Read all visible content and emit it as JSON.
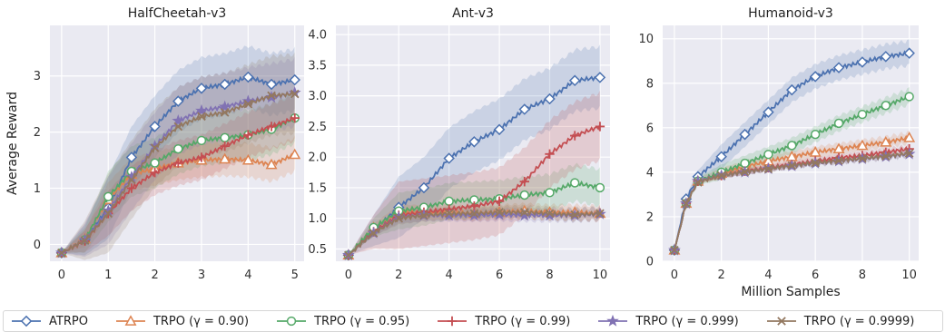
{
  "y_axis_label": "Average Reward",
  "x_axis_label": "Million Samples",
  "legend": [
    {
      "key": "atrpo",
      "label": "ATRPO",
      "color": "#4c72b0",
      "marker": "diamond"
    },
    {
      "key": "g090",
      "label": "TRPO (γ = 0.90)",
      "color": "#dd8452",
      "marker": "triangle"
    },
    {
      "key": "g095",
      "label": "TRPO (γ = 0.95)",
      "color": "#55a868",
      "marker": "circle"
    },
    {
      "key": "g099",
      "label": "TRPO (γ = 0.99)",
      "color": "#c44e52",
      "marker": "plus"
    },
    {
      "key": "g0999",
      "label": "TRPO (γ = 0.999)",
      "color": "#8172b3",
      "marker": "star"
    },
    {
      "key": "g09999",
      "label": "TRPO (γ = 0.9999)",
      "color": "#937860",
      "marker": "x"
    }
  ],
  "chart_data": [
    {
      "type": "line",
      "title": "HalfCheetah-v3",
      "xlabel": "",
      "ylabel": "Average Reward",
      "xlim": [
        -0.25,
        5.2
      ],
      "ylim": [
        -0.3,
        3.9
      ],
      "xticks": [
        0,
        1,
        2,
        3,
        4,
        5
      ],
      "yticks": [
        0,
        1,
        2,
        3
      ],
      "grid": true,
      "x": [
        0,
        0.5,
        1,
        1.5,
        2,
        2.5,
        3,
        3.5,
        4,
        4.5,
        5
      ],
      "series": [
        {
          "key": "atrpo",
          "values": [
            -0.15,
            0.08,
            0.65,
            1.55,
            2.1,
            2.55,
            2.78,
            2.85,
            2.98,
            2.85,
            2.93
          ],
          "band": 0.55
        },
        {
          "key": "g090",
          "values": [
            -0.15,
            0.1,
            0.8,
            1.25,
            1.35,
            1.45,
            1.5,
            1.52,
            1.5,
            1.42,
            1.6
          ],
          "band": 0.3
        },
        {
          "key": "g095",
          "values": [
            -0.15,
            0.08,
            0.85,
            1.3,
            1.45,
            1.7,
            1.85,
            1.9,
            1.95,
            2.05,
            2.25
          ],
          "band": 0.45
        },
        {
          "key": "g099",
          "values": [
            -0.15,
            0.06,
            0.55,
            1.0,
            1.28,
            1.45,
            1.55,
            1.75,
            1.95,
            2.1,
            2.25
          ],
          "band": 0.4
        },
        {
          "key": "g0999",
          "values": [
            -0.15,
            0.08,
            0.6,
            1.2,
            1.75,
            2.2,
            2.38,
            2.45,
            2.55,
            2.62,
            2.7
          ],
          "band": 0.6
        },
        {
          "key": "g09999",
          "values": [
            -0.15,
            0.07,
            0.55,
            1.15,
            1.72,
            2.1,
            2.28,
            2.35,
            2.5,
            2.65,
            2.68
          ],
          "band": 0.7
        }
      ]
    },
    {
      "type": "line",
      "title": "Ant-v3",
      "xlabel": "",
      "ylabel": "",
      "xlim": [
        -0.5,
        10.4
      ],
      "ylim": [
        0.3,
        4.15
      ],
      "xticks": [
        0,
        2,
        4,
        6,
        8,
        10
      ],
      "yticks": [
        0.5,
        1.0,
        1.5,
        2.0,
        2.5,
        3.0,
        3.5,
        4.0
      ],
      "ytick_labels": [
        "0.5",
        "1.0",
        "1.5",
        "2.0",
        "2.5",
        "3.0",
        "3.5",
        "4.0"
      ],
      "grid": true,
      "x": [
        0,
        1,
        2,
        3,
        4,
        5,
        6,
        7,
        8,
        9,
        10
      ],
      "series": [
        {
          "key": "atrpo",
          "values": [
            0.4,
            0.8,
            1.18,
            1.5,
            1.98,
            2.25,
            2.45,
            2.78,
            2.95,
            3.25,
            3.3
          ],
          "band": 0.5
        },
        {
          "key": "g090",
          "values": [
            0.4,
            0.85,
            1.1,
            1.1,
            1.1,
            1.08,
            1.1,
            1.12,
            1.1,
            1.1,
            1.08
          ],
          "band": 0.12
        },
        {
          "key": "g095",
          "values": [
            0.4,
            0.85,
            1.12,
            1.18,
            1.28,
            1.3,
            1.32,
            1.38,
            1.42,
            1.58,
            1.5
          ],
          "band": 0.3
        },
        {
          "key": "g099",
          "values": [
            0.4,
            0.78,
            1.05,
            1.1,
            1.15,
            1.2,
            1.28,
            1.6,
            2.05,
            2.35,
            2.5
          ],
          "band": 0.55
        },
        {
          "key": "g0999",
          "values": [
            0.4,
            0.76,
            1.02,
            1.05,
            1.05,
            1.05,
            1.06,
            1.05,
            1.05,
            1.05,
            1.07
          ],
          "band": 0.1
        },
        {
          "key": "g09999",
          "values": [
            0.4,
            0.76,
            1.0,
            1.05,
            1.08,
            1.08,
            1.1,
            1.1,
            1.08,
            1.06,
            1.08
          ],
          "band": 0.1
        }
      ]
    },
    {
      "type": "line",
      "title": "Humanoid-v3",
      "xlabel": "Million Samples",
      "ylabel": "",
      "xlim": [
        -0.5,
        10.4
      ],
      "ylim": [
        0,
        10.6
      ],
      "xticks": [
        0,
        2,
        4,
        6,
        8,
        10
      ],
      "yticks": [
        0,
        2,
        4,
        6,
        8,
        10
      ],
      "grid": true,
      "x": [
        0,
        0.5,
        1,
        2,
        3,
        4,
        5,
        6,
        7,
        8,
        9,
        10
      ],
      "series": [
        {
          "key": "atrpo",
          "values": [
            0.5,
            2.8,
            3.8,
            4.7,
            5.7,
            6.7,
            7.7,
            8.3,
            8.7,
            8.95,
            9.2,
            9.35
          ],
          "band": 0.55
        },
        {
          "key": "g090",
          "values": [
            0.5,
            2.6,
            3.6,
            3.95,
            4.25,
            4.5,
            4.7,
            4.9,
            5.05,
            5.2,
            5.35,
            5.55
          ],
          "band": 0.25
        },
        {
          "key": "g095",
          "values": [
            0.5,
            2.6,
            3.6,
            4.0,
            4.4,
            4.8,
            5.2,
            5.7,
            6.2,
            6.6,
            7.0,
            7.4
          ],
          "band": 0.35
        },
        {
          "key": "g099",
          "values": [
            0.5,
            2.6,
            3.6,
            3.85,
            4.05,
            4.2,
            4.35,
            4.5,
            4.65,
            4.75,
            4.9,
            5.05
          ],
          "band": 0.15
        },
        {
          "key": "g0999",
          "values": [
            0.5,
            2.6,
            3.6,
            3.85,
            4.0,
            4.15,
            4.28,
            4.4,
            4.5,
            4.6,
            4.7,
            4.82
          ],
          "band": 0.12
        },
        {
          "key": "g09999",
          "values": [
            0.5,
            2.6,
            3.55,
            3.85,
            4.02,
            4.15,
            4.3,
            4.42,
            4.52,
            4.62,
            4.72,
            4.85
          ],
          "band": 0.12
        }
      ]
    }
  ]
}
